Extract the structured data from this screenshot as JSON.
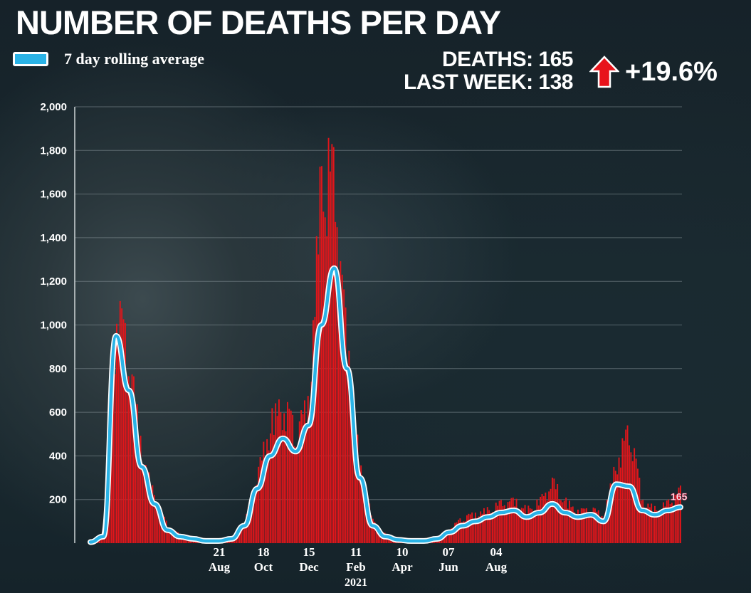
{
  "header": {
    "title": "NUMBER OF DEATHS PER DAY",
    "legend_label": "7 day rolling average",
    "deaths_label": "DEATHS:",
    "deaths_value": "165",
    "last_week_label": "LAST WEEK:",
    "last_week_value": "138",
    "change": "+19.6%",
    "change_icon": "up-arrow-icon"
  },
  "colors": {
    "bars": "#e0161b",
    "line": "#2ab3e6",
    "arrow": "#e8131b",
    "background": "#17242b"
  },
  "chart_data": {
    "type": "bar",
    "title": "NUMBER OF DEATHS PER DAY",
    "ylim": [
      0,
      2000
    ],
    "yticks": [
      "2,000",
      "1,800",
      "1,600",
      "1,400",
      "1,200",
      "1,000",
      "800",
      "600",
      "400",
      "200"
    ],
    "ytick_values": [
      2000,
      1800,
      1600,
      1400,
      1200,
      1000,
      800,
      600,
      400,
      200
    ],
    "xticks": [
      {
        "day": "21",
        "month": "Aug",
        "index": 2.3
      },
      {
        "day": "18",
        "month": "Oct",
        "index": 3.2
      },
      {
        "day": "15",
        "month": "Dec",
        "index": 4.1
      },
      {
        "day": "11",
        "month": "Feb",
        "index": 5.0,
        "year": "2021"
      },
      {
        "day": "10",
        "month": "Apr",
        "index": 5.9
      },
      {
        "day": "07",
        "month": "Jun",
        "index": 6.8
      },
      {
        "day": "04",
        "month": "Aug",
        "index": 7.7
      }
    ],
    "series": [
      {
        "name": "7 day rolling average",
        "type": "line",
        "values": [
          5,
          30,
          950,
          700,
          350,
          180,
          60,
          30,
          20,
          10,
          10,
          20,
          80,
          250,
          400,
          480,
          420,
          540,
          1000,
          1260,
          800,
          300,
          80,
          30,
          15,
          10,
          10,
          20,
          50,
          80,
          100,
          120,
          140,
          150,
          120,
          140,
          180,
          140,
          120,
          130,
          100,
          270,
          260,
          150,
          130,
          150,
          165
        ]
      }
    ],
    "bar_values": [
      5,
      40,
      1120,
      880,
      420,
      210,
      80,
      40,
      30,
      12,
      12,
      25,
      100,
      330,
      580,
      660,
      520,
      680,
      1820,
      1720,
      900,
      350,
      100,
      40,
      20,
      12,
      12,
      25,
      70,
      120,
      140,
      160,
      190,
      200,
      160,
      200,
      290,
      200,
      150,
      160,
      130,
      400,
      540,
      200,
      160,
      190,
      255
    ],
    "end_label": "165",
    "grid": true
  }
}
